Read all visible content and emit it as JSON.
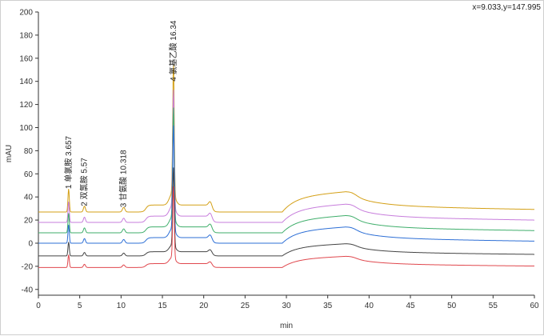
{
  "cursor_readout": "x=9.033,y=147.995",
  "chart_data": {
    "type": "line",
    "title": "",
    "xlabel": "min",
    "ylabel": "mAU",
    "xlim": [
      0,
      60
    ],
    "ylim": [
      -45,
      200
    ],
    "x_ticks": [
      0,
      5,
      10,
      15,
      20,
      25,
      30,
      35,
      40,
      45,
      50,
      55,
      60
    ],
    "y_ticks": [
      -40,
      -20,
      0,
      20,
      40,
      60,
      80,
      100,
      120,
      140,
      160,
      180,
      200
    ],
    "grid": false,
    "legend": "none",
    "peak_annotations": [
      {
        "text": "1 单氯胺 3.657",
        "x": 3.657,
        "y": 47
      },
      {
        "text": "2 双氯胺 5.57",
        "x": 5.57,
        "y": 32
      },
      {
        "text": "3 甘氨酸 10.318",
        "x": 10.318,
        "y": 31
      },
      {
        "text": "4 氯基乙酸 16.34",
        "x": 16.34,
        "y": 140
      }
    ],
    "series": [
      {
        "color": "#d4a017",
        "offset": 27,
        "scale": 1.0
      },
      {
        "color": "#c77ddc",
        "offset": 18,
        "scale": 0.9
      },
      {
        "color": "#3fae6b",
        "offset": 9,
        "scale": 0.85
      },
      {
        "color": "#2d6fd6",
        "offset": 0,
        "scale": 0.8
      },
      {
        "color": "#444444",
        "offset": -11,
        "scale": 0.6
      },
      {
        "color": "#e0484e",
        "offset": -21,
        "scale": 0.55
      }
    ]
  }
}
